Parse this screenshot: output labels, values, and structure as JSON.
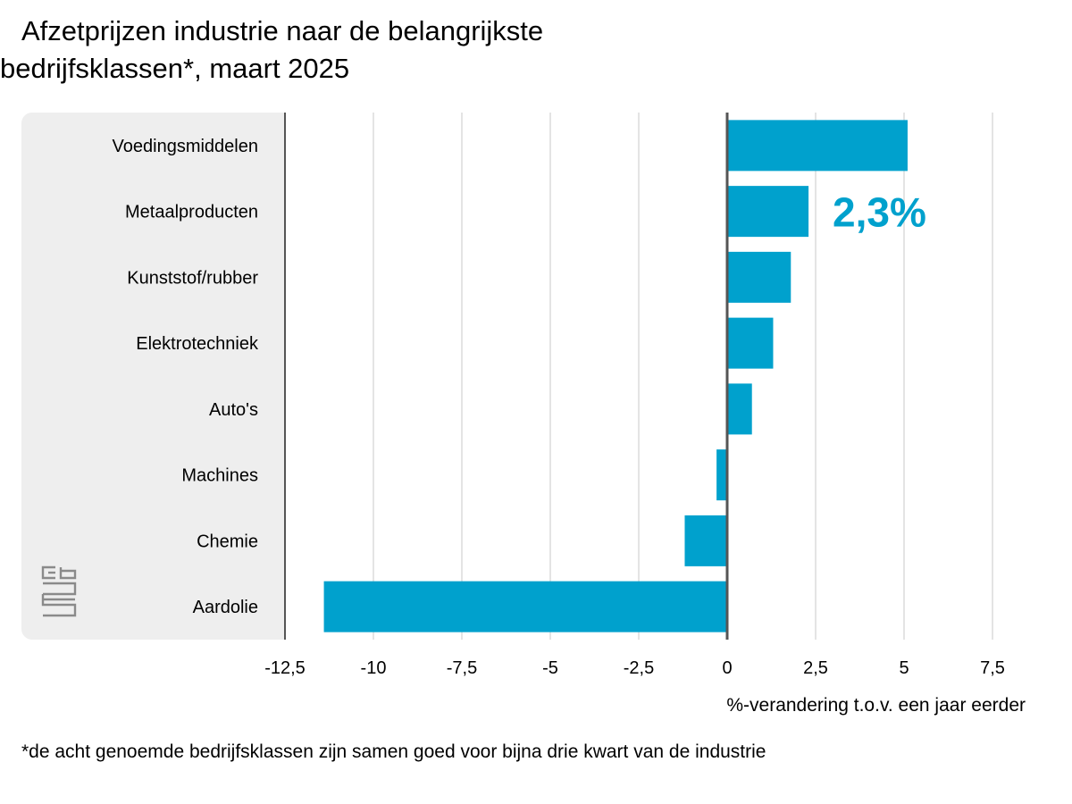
{
  "title_line1": "Afzetprijzen industrie naar de belangrijkste",
  "title_line2": "bedrijfsklassen*, maart 2025",
  "footnote": "*de acht genoemde bedrijfsklassen zijn samen goed voor bijna drie kwart van de industrie",
  "logo_icon": "cbs-logo-icon",
  "colors": {
    "bar": "#00a1cd",
    "highlight": "#00a1cd",
    "grid": "#c8c8c8",
    "axis": "#555555",
    "panel": "#eeeeee"
  },
  "chart_data": {
    "type": "bar",
    "orientation": "horizontal",
    "categories": [
      "Voedingsmiddelen",
      "Metaalproducten",
      "Kunststof/rubber",
      "Elektrotechniek",
      "Auto's",
      "Machines",
      "Chemie",
      "Aardolie"
    ],
    "values": [
      5.1,
      2.3,
      1.8,
      1.3,
      0.7,
      -0.3,
      -1.2,
      -11.4
    ],
    "xlabel": "%-verandering t.o.v. een jaar eerder",
    "xlim": [
      -12.5,
      7.5
    ],
    "xticks": [
      -12.5,
      -10,
      -7.5,
      -5,
      -2.5,
      0,
      2.5,
      5,
      7.5
    ],
    "xtick_labels": [
      "-12,5",
      "-10",
      "-7,5",
      "-5",
      "-2,5",
      "0",
      "2,5",
      "5",
      "7,5"
    ],
    "annotation": {
      "text": "2,3%",
      "category": "Metaalproducten"
    },
    "grid": true
  }
}
